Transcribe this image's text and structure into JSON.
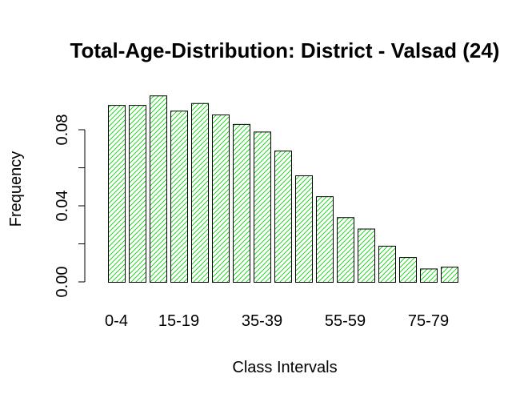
{
  "chart_data": {
    "type": "bar",
    "title": "Total-Age-Distribution: District - Valsad (24)",
    "xlabel": "Class Intervals",
    "ylabel": "Frequency",
    "categories": [
      "0-4",
      "5-9",
      "10-14",
      "15-19",
      "20-24",
      "25-29",
      "30-34",
      "35-39",
      "40-44",
      "45-49",
      "50-54",
      "55-59",
      "60-64",
      "65-69",
      "70-74",
      "75-79",
      "80+"
    ],
    "shown_category_labels": [
      "0-4",
      "15-19",
      "35-39",
      "55-59",
      "75-79"
    ],
    "values": [
      0.093,
      0.093,
      0.098,
      0.09,
      0.094,
      0.088,
      0.083,
      0.079,
      0.069,
      0.056,
      0.045,
      0.034,
      0.028,
      0.019,
      0.013,
      0.007,
      0.008
    ],
    "ylim": [
      0,
      0.1
    ],
    "yticks": [
      "0.00",
      "0.04",
      "0.08"
    ],
    "bar_fill": "#00cc00",
    "bar_fill_pattern": "diagonal hatching",
    "bar_outline": "#000000",
    "grid": false,
    "legend": "none"
  }
}
